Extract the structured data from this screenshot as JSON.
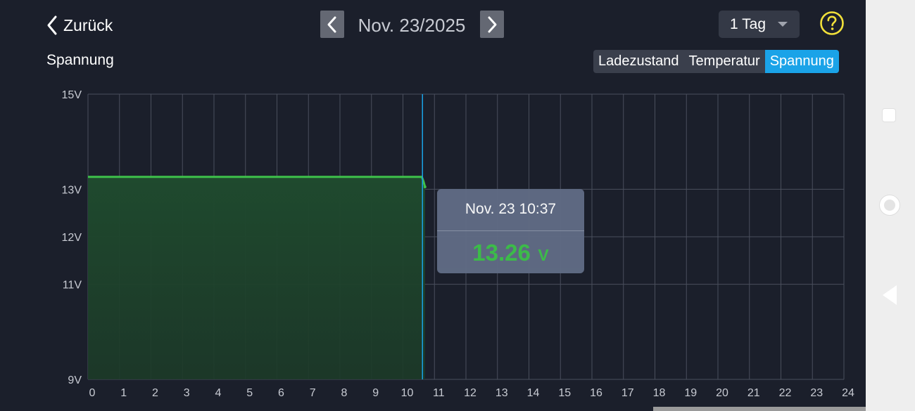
{
  "header": {
    "back_label": "Zurück",
    "date": "Nov. 23/2025",
    "range": "1 Tag"
  },
  "section_title": "Spannung",
  "tabs": [
    {
      "label": "Ladezustand",
      "active": false
    },
    {
      "label": "Temperatur",
      "active": false
    },
    {
      "label": "Spannung",
      "active": true
    }
  ],
  "tooltip": {
    "time": "Nov. 23 10:37",
    "value": "13.26",
    "unit": "V"
  },
  "colors": {
    "background": "#1b1f2b",
    "accent": "#1aa3e8",
    "series": "#3ec14a",
    "help": "#f1e03a"
  },
  "chart_data": {
    "type": "area",
    "x_ticks": [
      0,
      1,
      2,
      3,
      4,
      5,
      6,
      7,
      8,
      9,
      10,
      11,
      12,
      13,
      14,
      15,
      16,
      17,
      18,
      19,
      20,
      21,
      22,
      23,
      24
    ],
    "y_ticks": [
      {
        "value": 15,
        "label": "15V"
      },
      {
        "value": 13,
        "label": "13V"
      },
      {
        "value": 12,
        "label": "12V"
      },
      {
        "value": 11,
        "label": "11V"
      },
      {
        "value": 9,
        "label": "9V"
      }
    ],
    "ylim": [
      9,
      15
    ],
    "xlim": [
      0,
      24
    ],
    "grid": true,
    "cursor_x": 10.62,
    "series": [
      {
        "x": [
          0,
          1,
          2,
          3,
          4,
          5,
          6,
          7,
          8,
          9,
          10,
          10.6,
          10.65,
          10.7
        ],
        "y": [
          13.26,
          13.26,
          13.26,
          13.26,
          13.26,
          13.26,
          13.26,
          13.26,
          13.26,
          13.26,
          13.26,
          13.26,
          13.17,
          13.05
        ]
      }
    ]
  }
}
